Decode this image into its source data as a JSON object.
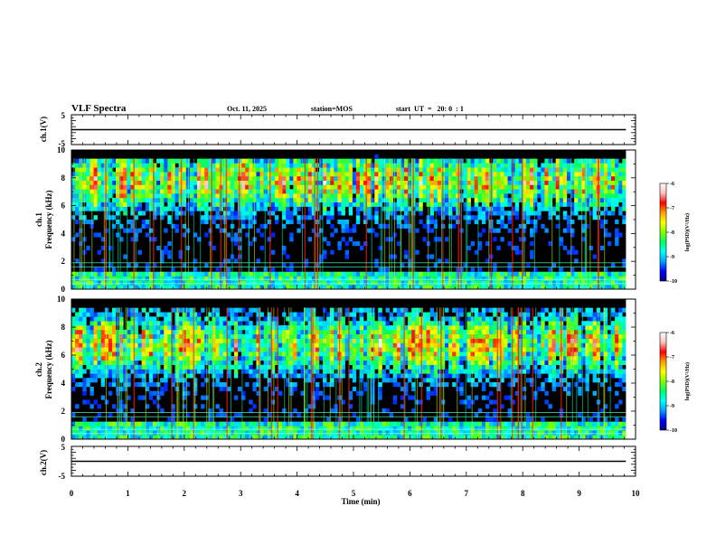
{
  "header": {
    "title": "VLF Spectra",
    "date": "Oct. 11, 2025",
    "station": "station=MOS",
    "start": "start  UT  =   20: 0  : 1"
  },
  "chart_data": [
    {
      "type": "line",
      "name": "ch1-voltage",
      "ylabel": "ch.1(V)",
      "ylim": [
        -5,
        5
      ],
      "yticks": [
        "5",
        "-5"
      ],
      "x": [
        0,
        9.83
      ],
      "values": [
        0.0,
        0.0
      ]
    },
    {
      "type": "heatmap",
      "name": "ch1-spectrogram",
      "ylabel": "ch.1\nFrequency (kHz)",
      "ylabel_line1": "ch.1",
      "ylabel_line2": "Frequency (kHz)",
      "ylim": [
        0,
        10
      ],
      "yticks": [
        "10",
        "8",
        "6",
        "4",
        "2",
        "0"
      ],
      "xlim": [
        0,
        9.83
      ],
      "dominant_band_khz": [
        6.5,
        9
      ],
      "colorbar": {
        "label": "log(PSD)(V²/Hz)",
        "range": [
          -10,
          -6
        ],
        "ticks": [
          "-6",
          "-7",
          "-8",
          "-9",
          "-10"
        ]
      }
    },
    {
      "type": "heatmap",
      "name": "ch2-spectrogram",
      "ylabel": "ch.2\nFrequency (kHz)",
      "ylabel_line1": "ch.2",
      "ylabel_line2": "Frequency (kHz)",
      "ylim": [
        0,
        10
      ],
      "yticks": [
        "10",
        "8",
        "6",
        "4",
        "2",
        "0"
      ],
      "xlim": [
        0,
        9.83
      ],
      "dominant_band_khz": [
        5.5,
        8
      ],
      "colorbar": {
        "label": "log(PSD)(V²/Hz)",
        "range": [
          -10,
          -6
        ],
        "ticks": [
          "-6",
          "-7",
          "-8",
          "-9",
          "-10"
        ]
      }
    },
    {
      "type": "line",
      "name": "ch2-voltage",
      "ylabel": "ch.2(V)",
      "ylim": [
        -5,
        5
      ],
      "yticks": [
        "5",
        "-5"
      ],
      "x": [
        0,
        9.83
      ],
      "values": [
        0.0,
        0.0
      ]
    }
  ],
  "xaxis": {
    "label": "Time (min)",
    "range": [
      0,
      10
    ],
    "ticks": [
      "0",
      "1",
      "2",
      "3",
      "4",
      "5",
      "6",
      "7",
      "8",
      "9",
      "10"
    ]
  },
  "colors": {
    "colormap": [
      "#000080",
      "#0000ff",
      "#00a0ff",
      "#00ffff",
      "#00ff60",
      "#80ff00",
      "#ffff00",
      "#ffa000",
      "#ff0000",
      "#ffc0c0",
      "#ffffff"
    ]
  }
}
